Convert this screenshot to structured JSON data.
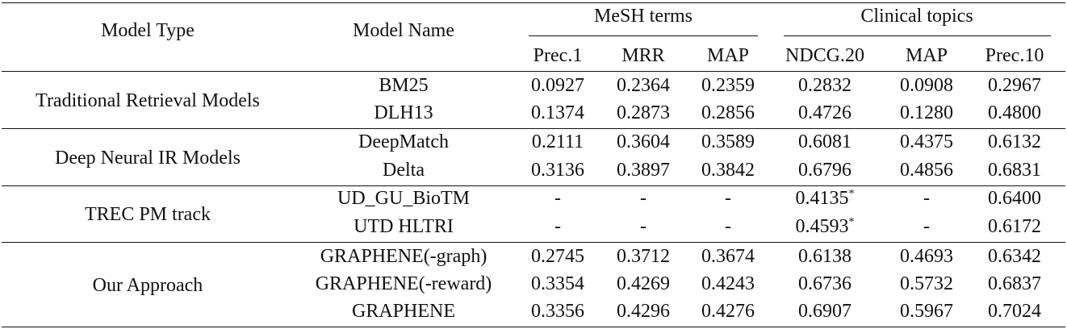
{
  "table": {
    "headers": {
      "model_type": "Model Type",
      "model_name": "Model Name",
      "group_mesh": "MeSH terms",
      "group_clinical": "Clinical topics",
      "metrics": [
        "Prec.1",
        "MRR",
        "MAP",
        "NDCG.20",
        "MAP",
        "Prec.10"
      ]
    },
    "groups": [
      {
        "type": "Traditional Retrieval Models",
        "rows": [
          {
            "name": "BM25",
            "values": [
              "0.0927",
              "0.2364",
              "0.2359",
              "0.2832",
              "0.0908",
              "0.2967"
            ]
          },
          {
            "name": "DLH13",
            "values": [
              "0.1374",
              "0.2873",
              "0.2856",
              "0.4726",
              "0.1280",
              "0.4800"
            ]
          }
        ]
      },
      {
        "type": "Deep Neural IR Models",
        "rows": [
          {
            "name": "DeepMatch",
            "values": [
              "0.2111",
              "0.3604",
              "0.3589",
              "0.6081",
              "0.4375",
              "0.6132"
            ]
          },
          {
            "name": "Delta",
            "values": [
              "0.3136",
              "0.3897",
              "0.3842",
              "0.6796",
              "0.4856",
              "0.6831"
            ]
          }
        ]
      },
      {
        "type": "TREC PM track",
        "rows": [
          {
            "name": "UD_GU_BioTM",
            "values": [
              "-",
              "-",
              "-",
              "0.4135*",
              "-",
              "0.6400"
            ]
          },
          {
            "name": "UTD HLTRI",
            "values": [
              "-",
              "-",
              "-",
              "0.4593*",
              "-",
              "0.6172"
            ]
          }
        ]
      },
      {
        "type": "Our Approach",
        "rows": [
          {
            "name": "GRAPHENE(-graph)",
            "values": [
              "0.2745",
              "0.3712",
              "0.3674",
              "0.6138",
              "0.4693",
              "0.6342"
            ]
          },
          {
            "name": "GRAPHENE(-reward)",
            "values": [
              "0.3354",
              "0.4269",
              "0.4243",
              "0.6736",
              "0.5732",
              "0.6837"
            ]
          },
          {
            "name": "GRAPHENE",
            "values": [
              "0.3356",
              "0.4296",
              "0.4276",
              "0.6907",
              "0.5967",
              "0.7024"
            ]
          }
        ]
      }
    ]
  }
}
